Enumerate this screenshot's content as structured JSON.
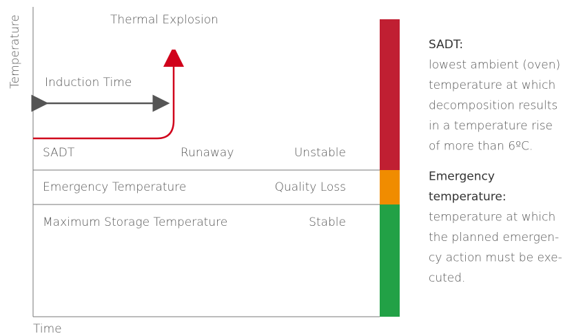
{
  "axes": {
    "y_label": "Temperature",
    "x_label": "Time"
  },
  "annotations": {
    "explosion": "Thermal Explosion",
    "induction": "Induction Time"
  },
  "zones": [
    {
      "left": "SADT",
      "middle": "Runaway",
      "right": "Unstable"
    },
    {
      "left": "Emergency Temperature",
      "right": "Quality Loss"
    },
    {
      "left": "Maximum Storage Temperature",
      "right": "Stable"
    }
  ],
  "definitions": [
    {
      "term": [
        "SADT:"
      ],
      "lines": [
        "lowest ambient (oven)",
        "temperature at which",
        "decomposition results",
        "in a temperature rise",
        "of more than 6ºC."
      ]
    },
    {
      "term": [
        "Emergency",
        "temperature:"
      ],
      "lines": [
        "temperature at which",
        "the planned emergen-",
        "cy action must be exe-",
        "cuted."
      ]
    }
  ]
}
